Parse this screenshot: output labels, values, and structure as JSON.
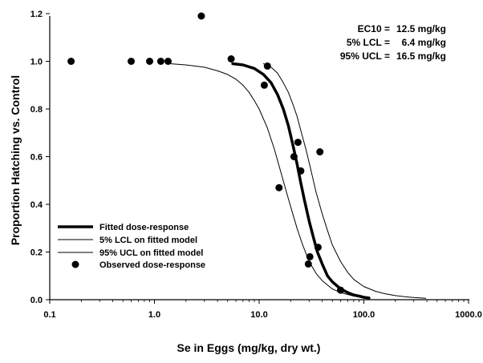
{
  "chart_data": {
    "type": "scatter",
    "xlabel": "Se in Eggs (mg/kg, dry wt.)",
    "ylabel": "Proportion Hatching vs. Control",
    "x_scale": "log",
    "xlim": [
      0.1,
      1000
    ],
    "ylim": [
      0,
      1.2
    ],
    "x_ticks": [
      0.1,
      1,
      10,
      100,
      1000
    ],
    "x_tick_labels": [
      "0.1",
      "1.0",
      "10.0",
      "100.0",
      "1000.0"
    ],
    "y_ticks": [
      0,
      0.2,
      0.4,
      0.6,
      0.8,
      1.0,
      1.2
    ],
    "y_tick_labels": [
      "0.0",
      "0.2",
      "0.4",
      "0.6",
      "0.8",
      "1.0",
      "1.2"
    ],
    "grid": false,
    "legend_position": "bottom-left",
    "annotations": [
      {
        "label": "EC10 =",
        "value": "12.5 mg/kg"
      },
      {
        "label": "5% LCL =",
        "value": "6.4 mg/kg"
      },
      {
        "label": "95% UCL =",
        "value": "16.5 mg/kg"
      }
    ],
    "series": [
      {
        "name": "Fitted dose-response",
        "kind": "line",
        "style": "thick",
        "x": [
          5.6,
          7,
          9,
          11,
          13,
          15,
          17,
          19,
          21,
          23,
          25,
          27,
          30,
          33,
          36,
          40,
          45,
          50,
          60,
          70,
          80,
          90,
          100,
          112
        ],
        "y": [
          0.99,
          0.985,
          0.97,
          0.945,
          0.91,
          0.86,
          0.8,
          0.73,
          0.65,
          0.57,
          0.49,
          0.42,
          0.33,
          0.26,
          0.2,
          0.15,
          0.1,
          0.075,
          0.045,
          0.03,
          0.02,
          0.015,
          0.01,
          0.007
        ]
      },
      {
        "name": "5% LCL on fitted model",
        "kind": "line",
        "style": "thin",
        "x": [
          1.4,
          2,
          3,
          4,
          5,
          6,
          7,
          8,
          9,
          10,
          12,
          14,
          16,
          18,
          20,
          23,
          26,
          30,
          35,
          40,
          50,
          60,
          80,
          100
        ],
        "y": [
          0.99,
          0.985,
          0.975,
          0.96,
          0.945,
          0.925,
          0.9,
          0.87,
          0.835,
          0.8,
          0.72,
          0.63,
          0.54,
          0.46,
          0.39,
          0.3,
          0.23,
          0.16,
          0.11,
          0.08,
          0.045,
          0.03,
          0.015,
          0.008
        ]
      },
      {
        "name": "95% UCL on fitted model",
        "kind": "line",
        "style": "thin",
        "x": [
          11,
          13,
          15,
          17,
          19,
          21,
          23,
          25,
          28,
          31,
          35,
          40,
          45,
          50,
          60,
          70,
          80,
          100,
          130,
          160,
          200,
          250,
          300,
          390
        ],
        "y": [
          0.99,
          0.975,
          0.95,
          0.91,
          0.87,
          0.82,
          0.77,
          0.71,
          0.63,
          0.55,
          0.45,
          0.36,
          0.29,
          0.23,
          0.16,
          0.115,
          0.085,
          0.055,
          0.035,
          0.025,
          0.017,
          0.012,
          0.009,
          0.006
        ]
      },
      {
        "name": "Observed dose-response",
        "kind": "points",
        "x": [
          0.16,
          0.6,
          0.9,
          1.15,
          1.35,
          2.8,
          5.4,
          11.2,
          12,
          15.5,
          21.5,
          23.5,
          25,
          29.5,
          30.5,
          36.5,
          38,
          60
        ],
        "y": [
          1.0,
          1.0,
          1.0,
          1.0,
          1.0,
          1.19,
          1.01,
          0.9,
          0.98,
          0.47,
          0.6,
          0.66,
          0.54,
          0.15,
          0.18,
          0.22,
          0.62,
          0.04
        ]
      }
    ]
  }
}
